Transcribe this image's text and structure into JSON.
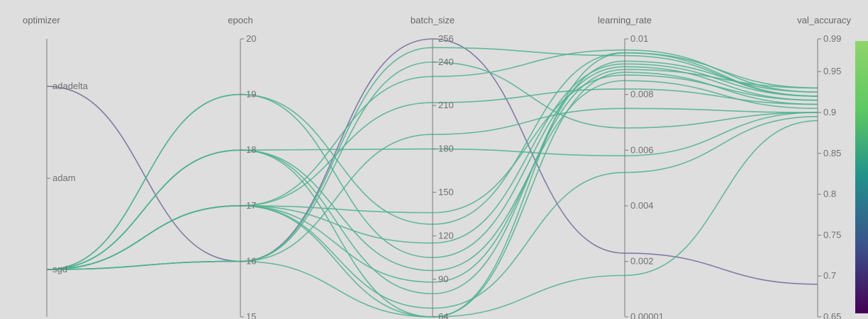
{
  "chart_data": {
    "type": "parallel-coordinates",
    "title": "",
    "axes": [
      {
        "name": "optimizer",
        "kind": "categorical",
        "categories": [
          "sgd",
          "adam",
          "adadelta"
        ],
        "tick_labels": [
          "adadelta",
          "adam",
          "sgd"
        ]
      },
      {
        "name": "epoch",
        "kind": "numeric",
        "range": [
          15,
          20
        ],
        "ticks": [
          20,
          19,
          18,
          17,
          16,
          15
        ],
        "tick_labels": [
          "20",
          "19",
          "18",
          "17",
          "16",
          "15"
        ]
      },
      {
        "name": "batch_size",
        "kind": "numeric",
        "range": [
          64,
          256
        ],
        "ticks": [
          256,
          240,
          210,
          180,
          150,
          120,
          90,
          64
        ],
        "tick_labels": [
          "256",
          "240",
          "210",
          "180",
          "150",
          "120",
          "90",
          "64"
        ]
      },
      {
        "name": "learning_rate",
        "kind": "numeric",
        "range": [
          1e-05,
          0.01
        ],
        "ticks": [
          0.01,
          0.008,
          0.006,
          0.004,
          0.002,
          1e-05
        ],
        "tick_labels": [
          "0.01",
          "0.008",
          "0.006",
          "0.004",
          "0.002",
          "0.00001"
        ]
      },
      {
        "name": "val_accuracy",
        "kind": "numeric",
        "range": [
          0.65,
          0.99
        ],
        "ticks": [
          0.99,
          0.95,
          0.9,
          0.85,
          0.8,
          0.75,
          0.7,
          0.65
        ],
        "tick_labels": [
          "0.99",
          "0.95",
          "0.9",
          "0.85",
          "0.8",
          "0.75",
          "0.7",
          "0.65"
        ]
      }
    ],
    "colorscale": {
      "variable": "val_accuracy",
      "low": "#440154",
      "mid": "#21918c",
      "high": "#7ad151"
    },
    "rows": [
      [
        "adadelta",
        16,
        256,
        0.0023,
        0.69
      ],
      [
        "sgd",
        19,
        128,
        0.0095,
        0.92
      ],
      [
        "sgd",
        19,
        105,
        0.009,
        0.915
      ],
      [
        "sgd",
        18,
        64,
        0.0088,
        0.91
      ],
      [
        "sgd",
        18,
        80,
        0.0092,
        0.925
      ],
      [
        "sgd",
        18,
        96,
        0.0085,
        0.905
      ],
      [
        "sgd",
        18,
        180,
        0.0058,
        0.9
      ],
      [
        "sgd",
        17,
        64,
        0.0095,
        0.93
      ],
      [
        "sgd",
        17,
        115,
        0.0091,
        0.92
      ],
      [
        "sgd",
        17,
        136,
        0.0087,
        0.915
      ],
      [
        "sgd",
        17,
        212,
        0.0082,
        0.91
      ],
      [
        "sgd",
        17,
        230,
        0.0096,
        0.925
      ],
      [
        "sgd",
        17,
        88,
        0.0089,
        0.93
      ],
      [
        "sgd",
        16,
        64,
        0.0015,
        0.89
      ],
      [
        "sgd",
        16,
        240,
        0.0068,
        0.9
      ],
      [
        "sgd",
        16,
        250,
        0.0094,
        0.92
      ],
      [
        "sgd",
        16,
        190,
        0.0075,
        0.9
      ],
      [
        "sgd",
        17,
        70,
        0.0052,
        0.895
      ]
    ]
  }
}
